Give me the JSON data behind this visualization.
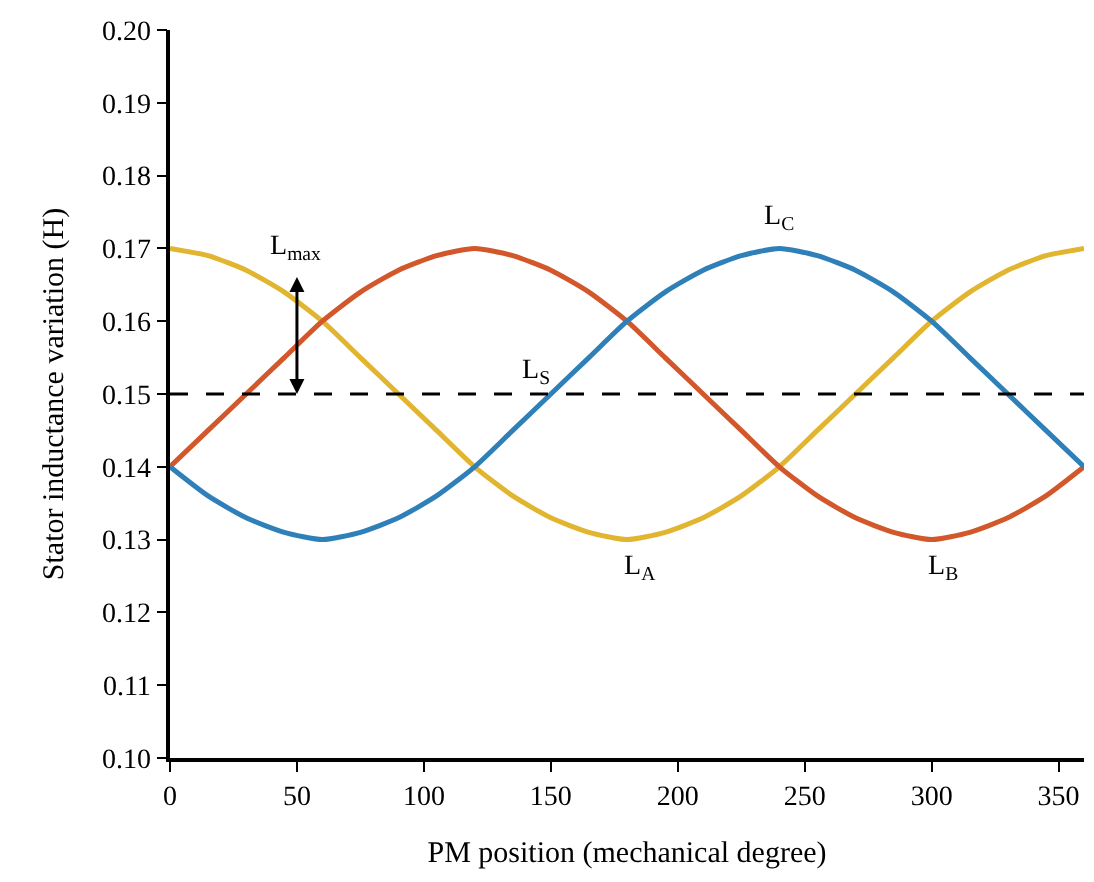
{
  "chart_data": {
    "type": "line",
    "xlabel": "PM position (mechanical degree)",
    "ylabel": "Stator inductance variation (H)",
    "x": [
      0,
      15,
      30,
      45,
      60,
      75,
      90,
      105,
      120,
      135,
      150,
      165,
      180,
      195,
      210,
      225,
      240,
      255,
      270,
      285,
      300,
      315,
      330,
      345,
      360
    ],
    "series": [
      {
        "name": "L$_{A}$",
        "color": "#e2b530",
        "values": [
          0.17,
          0.169,
          0.167,
          0.164,
          0.16,
          0.155,
          0.15,
          0.145,
          0.14,
          0.136,
          0.133,
          0.131,
          0.13,
          0.131,
          0.133,
          0.136,
          0.14,
          0.145,
          0.15,
          0.155,
          0.16,
          0.164,
          0.167,
          0.169,
          0.17
        ]
      },
      {
        "name": "L$_{B}$",
        "color": "#d2572b",
        "values": [
          0.14,
          0.145,
          0.15,
          0.155,
          0.16,
          0.164,
          0.167,
          0.169,
          0.17,
          0.169,
          0.167,
          0.164,
          0.16,
          0.155,
          0.15,
          0.145,
          0.14,
          0.136,
          0.133,
          0.131,
          0.13,
          0.131,
          0.133,
          0.136,
          0.14
        ]
      },
      {
        "name": "L$_{C}$",
        "color": "#2f80b8",
        "values": [
          0.14,
          0.136,
          0.133,
          0.131,
          0.13,
          0.131,
          0.133,
          0.136,
          0.14,
          0.145,
          0.15,
          0.155,
          0.16,
          0.164,
          0.167,
          0.169,
          0.17,
          0.169,
          0.167,
          0.164,
          0.16,
          0.155,
          0.15,
          0.145,
          0.14
        ]
      }
    ],
    "xlim": [
      0,
      360
    ],
    "xticks": [
      0,
      50,
      100,
      150,
      200,
      250,
      300,
      350
    ],
    "ylim": [
      0.1,
      0.2
    ],
    "yticks": [
      {
        "value": 0.1,
        "label": "0.10"
      },
      0.11,
      0.12,
      0.13,
      0.14,
      0.15,
      0.16,
      0.17,
      0.18,
      0.19,
      {
        "value": 0.2,
        "label": "0.20"
      }
    ],
    "ref_lines": [
      {
        "axis": "y",
        "value": 0.15,
        "label": "L$_{S}$",
        "color": "#000000",
        "line_style": "dashed"
      }
    ],
    "annotations": [
      {
        "text": "L$_{max}$",
        "x": 50,
        "y": 0.15
      }
    ],
    "marker": "none",
    "line_style": "solid"
  }
}
